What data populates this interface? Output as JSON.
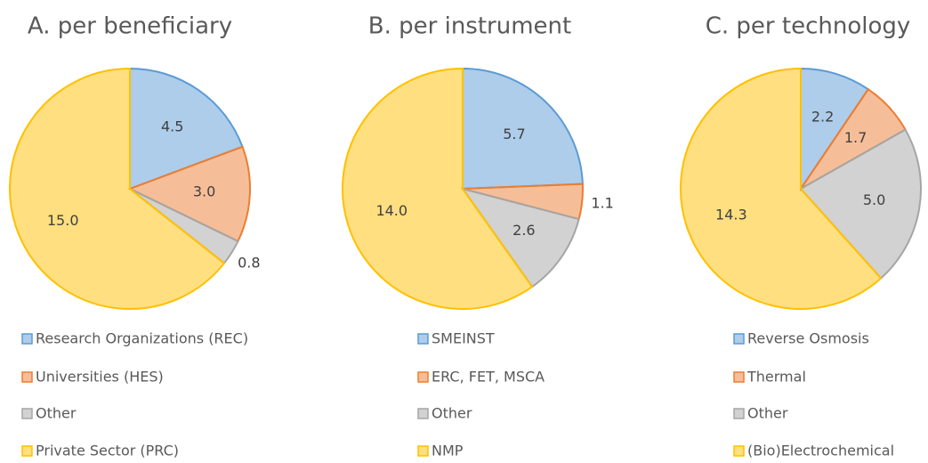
{
  "chart_data": [
    {
      "type": "pie",
      "title": "A. per beneficiary",
      "categories": [
        "Research Organizations (REC)",
        "Universities (HES)",
        "Other",
        "Private Sector (PRC)"
      ],
      "values": [
        4.5,
        3.0,
        0.8,
        15.0
      ],
      "value_labels": [
        "4.5",
        "3.0",
        "0.8",
        "15.0"
      ],
      "colors": [
        "#5b9bd5",
        "#ed7d31",
        "#a5a5a5",
        "#ffc000"
      ]
    },
    {
      "type": "pie",
      "title": "B. per instrument",
      "categories": [
        "SMEINST",
        "ERC, FET, MSCA",
        "Other",
        "NMP"
      ],
      "values": [
        5.7,
        1.1,
        2.6,
        14.0
      ],
      "value_labels": [
        "5.7",
        "1.1",
        "2.6",
        "14.0"
      ],
      "colors": [
        "#5b9bd5",
        "#ed7d31",
        "#a5a5a5",
        "#ffc000"
      ]
    },
    {
      "type": "pie",
      "title": "C. per technology",
      "categories": [
        "Reverse Osmosis",
        "Thermal",
        "Other",
        "(Bio)Electrochemical"
      ],
      "values": [
        2.2,
        1.7,
        5.0,
        14.3
      ],
      "value_labels": [
        "2.2",
        "1.7",
        "5.0",
        "14.3"
      ],
      "colors": [
        "#5b9bd5",
        "#ed7d31",
        "#a5a5a5",
        "#ffc000"
      ]
    }
  ]
}
